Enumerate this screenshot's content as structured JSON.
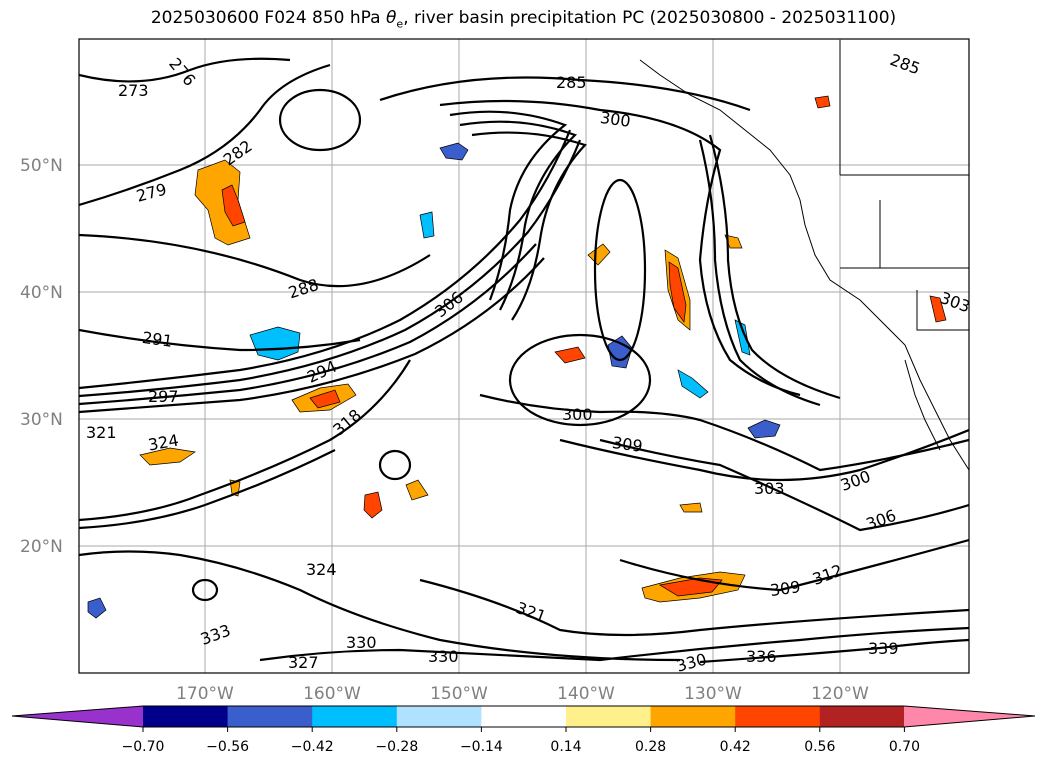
{
  "title": {
    "prefix": "2025030600 F024 850 hPa ",
    "theta_symbol": "θ",
    "theta_sub": "e",
    "suffix": ", river basin precipitation PC (2025030800 - 2025031100)"
  },
  "map": {
    "lat_labels": [
      "50°N",
      "40°N",
      "30°N",
      "20°N"
    ],
    "lon_labels": [
      "170°W",
      "160°W",
      "150°W",
      "140°W",
      "130°W",
      "120°W"
    ]
  },
  "contour_labels": [
    "273",
    "276",
    "279",
    "282",
    "285",
    "288",
    "291",
    "294",
    "297",
    "300",
    "303",
    "306",
    "309",
    "312",
    "318",
    "321",
    "324",
    "327",
    "330",
    "333",
    "336",
    "339"
  ],
  "colors": {
    "neg_070": "#9932cc",
    "neg_056": "#00008b",
    "neg_042": "#3a5fcd",
    "neg_028": "#00bfff",
    "neg_014": "#b0e2ff",
    "zero": "#ffffff",
    "pos_014": "#fff08c",
    "pos_028": "#ffa500",
    "pos_042": "#ff4500",
    "pos_056": "#b22222",
    "pos_070": "#ff88aa"
  },
  "colorbar": {
    "ticks": [
      "−0.70",
      "−0.56",
      "−0.42",
      "−0.28",
      "−0.14",
      "0.14",
      "0.28",
      "0.42",
      "0.56",
      "0.70"
    ],
    "segment_colors": [
      "#9932cc",
      "#00008b",
      "#3a5fcd",
      "#00bfff",
      "#b0e2ff",
      "#ffffff",
      "#fff08c",
      "#ffa500",
      "#ff4500",
      "#b22222",
      "#ff88aa"
    ]
  }
}
